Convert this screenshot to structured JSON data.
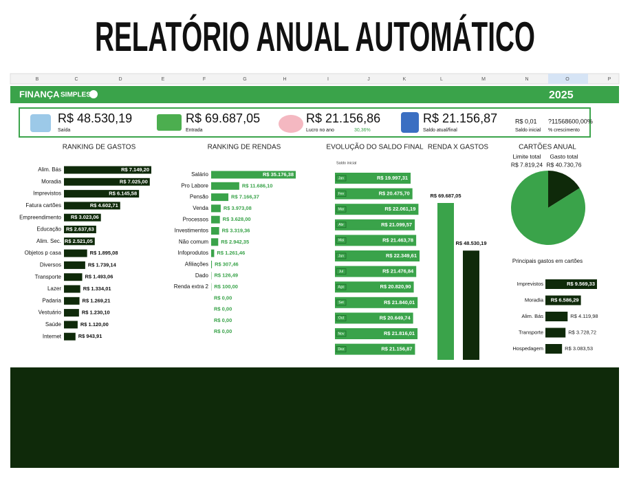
{
  "header": {
    "title": "RELATÓRIO ANUAL AUTOMÁTICO"
  },
  "sheet_columns": [
    "B",
    "C",
    "D",
    "E",
    "F",
    "G",
    "H",
    "I",
    "J",
    "K",
    "L",
    "M",
    "N",
    "O",
    "P"
  ],
  "brand": {
    "part1": "FINANÇA",
    "part2": "SIMPLES"
  },
  "year": "2025",
  "kpis": [
    {
      "value": "R$ 48.530,19",
      "label": "Saída"
    },
    {
      "value": "R$ 69.687,05",
      "label": "Entrada"
    },
    {
      "value": "R$ 21.156,86",
      "label": "Lucro no ano",
      "note": "30,36%"
    },
    {
      "value": "R$ 21.156,87",
      "label": "Saldo atual/final"
    },
    {
      "value": "R$ 0,01",
      "label": "Saldo inicial"
    },
    {
      "value": "?11568600,00%",
      "label": "% crescimento"
    }
  ],
  "gastos": {
    "title": "RANKING DE GASTOS",
    "color": "#0f2a0a",
    "categories": [
      "Alim. Bás",
      "Moradia",
      "Imprevistos",
      "Fatura cartões",
      "Empreendimento",
      "Educação",
      "Alim. Sec.",
      "Objetos p casa",
      "Diversos",
      "Transporte",
      "Lazer",
      "Padaria",
      "Vestuário",
      "Saúde",
      "Internet"
    ],
    "values": [
      7149.2,
      7025.0,
      6145.58,
      4602.71,
      3023.06,
      2637.63,
      2521.05,
      1895.08,
      1739.14,
      1493.06,
      1334.01,
      1269.21,
      1230.1,
      1120.0,
      943.91
    ],
    "value_labels": [
      "R$ 7.149,20",
      "R$ 7.025,00",
      "R$ 6.145,58",
      "R$ 4.602,71",
      "R$ 3.023,06",
      "R$ 2.637,63",
      "R$ 2.521,05",
      "R$ 1.895,08",
      "R$ 1.739,14",
      "R$ 1.493,06",
      "R$ 1.334,01",
      "R$ 1.269,21",
      "R$ 1.230,10",
      "R$ 1.120,00",
      "R$ 943,91"
    ]
  },
  "rendas": {
    "title": "RANKING DE RENDAS",
    "color": "#3aa34a",
    "categories": [
      "Salário",
      "Pro Labore",
      "Pensão",
      "Venda",
      "Processos",
      "Investimentos",
      "Não comum",
      "Infoprodutos",
      "Afiliações",
      "Dado",
      "Renda extra 2",
      null,
      null,
      null,
      null
    ],
    "values": [
      35176.38,
      11686.1,
      7166.37,
      3973.08,
      3628.0,
      3319.36,
      2942.35,
      1261.46,
      307.46,
      126.49,
      100.0,
      0,
      0,
      0,
      0
    ],
    "value_labels": [
      "R$ 35.176,38",
      "R$ 11.686,10",
      "R$ 7.166,37",
      "R$ 3.973,08",
      "R$ 3.628,00",
      "R$ 3.319,36",
      "R$ 2.942,35",
      "R$ 1.261,46",
      "R$ 307,46",
      "R$ 126,49",
      "R$ 100,00",
      "R$ 0,00",
      "R$ 0,00",
      "R$ 0,00",
      "R$ 0,00"
    ]
  },
  "saldo": {
    "title": "EVOLUÇÃO DO SALDO FINAL",
    "start_label": "Saldo inicial",
    "color": "#3aa34a",
    "categories": [
      "Jan",
      "Fev",
      "Mar",
      "Abr",
      "Mai",
      "Jun",
      "Jul",
      "Ago",
      "Set",
      "Out",
      "Nov",
      "Dez"
    ],
    "values": [
      19997.31,
      20475.7,
      22061.19,
      21099.57,
      21463.78,
      22349.61,
      21476.84,
      20820.9,
      21840.01,
      20649.74,
      21816.01,
      21156.87
    ],
    "value_labels": [
      "R$ 19.997,31",
      "R$ 20.475,70",
      "R$ 22.061,19",
      "R$ 21.099,57",
      "R$ 21.463,78",
      "R$ 22.349,61",
      "R$ 21.476,84",
      "R$ 20.820,90",
      "R$ 21.840,01",
      "R$ 20.649,74",
      "R$ 21.816,01",
      "R$ 21.156,87"
    ]
  },
  "renda_x_gastos": {
    "title": "RENDA X GASTOS",
    "values": [
      69687.05,
      48530.19
    ],
    "value_labels": [
      "R$ 69.687,05",
      "R$ 48.530,19"
    ],
    "colors": [
      "#3aa34a",
      "#0f2a0a"
    ]
  },
  "cartoes": {
    "title": "CARTÕES ANUAL",
    "categories": [
      "Limite total",
      "Gasto total"
    ],
    "values": [
      7819.24,
      40730.76
    ],
    "value_labels": [
      "R$ 7.819,24",
      "R$ 40.730,76"
    ],
    "colors": [
      "#0f2a0a",
      "#3aa34a"
    ]
  },
  "cartoes_gastos": {
    "title": "Principais gastos em cartões",
    "color": "#0f2a0a",
    "categories": [
      "Imprevistos",
      "Moradia",
      "Alim. Bás",
      "Transporte",
      "Hospedagem"
    ],
    "values": [
      9569.33,
      6586.29,
      4119.98,
      3728.72,
      3083.53
    ],
    "value_labels": [
      "R$ 9.569,33",
      "R$ 6.586,29",
      "R$ 4.119,98",
      "R$ 3.728,72",
      "R$ 3.083,53"
    ]
  }
}
